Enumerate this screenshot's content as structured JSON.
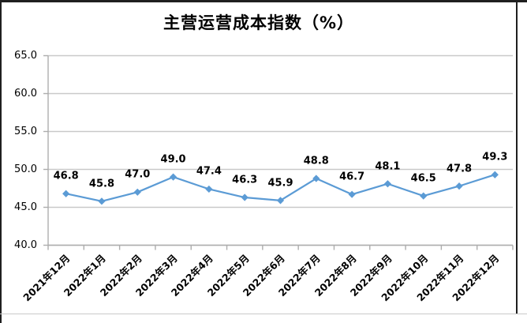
{
  "chart_data": {
    "type": "line",
    "title": "主营运营成本指数（%）",
    "categories": [
      "2021年12月",
      "2022年1月",
      "2022年2月",
      "2022年3月",
      "2022年4月",
      "2022年5月",
      "2022年6月",
      "2022年7月",
      "2022年8月",
      "2022年9月",
      "2022年10月",
      "2022年11月",
      "2022年12月"
    ],
    "values": [
      46.8,
      45.8,
      47.0,
      49.0,
      47.4,
      46.3,
      45.9,
      48.8,
      46.7,
      48.1,
      46.5,
      47.8,
      49.3
    ],
    "data_labels": [
      "46.8",
      "45.8",
      "47.0",
      "49.0",
      "47.4",
      "46.3",
      "45.9",
      "48.8",
      "46.7",
      "48.1",
      "46.5",
      "47.8",
      "49.3"
    ],
    "xlabel": "",
    "ylabel": "",
    "ylim": [
      40.0,
      65.0
    ],
    "ytick_step": 5.0,
    "ytick_labels": [
      "65.0",
      "60.0",
      "55.0",
      "50.0",
      "45.0",
      "40.0"
    ],
    "grid": "horizontal",
    "legend": "none",
    "marker": "diamond",
    "colors": {
      "line": "#5B9BD5",
      "gridline": "#C9C9C9",
      "axis": "#ADADAD",
      "text": "#000000",
      "border_dark": "#1F1F1F",
      "border_light": "#C9C9C9",
      "background": "#FFFFFF"
    }
  }
}
